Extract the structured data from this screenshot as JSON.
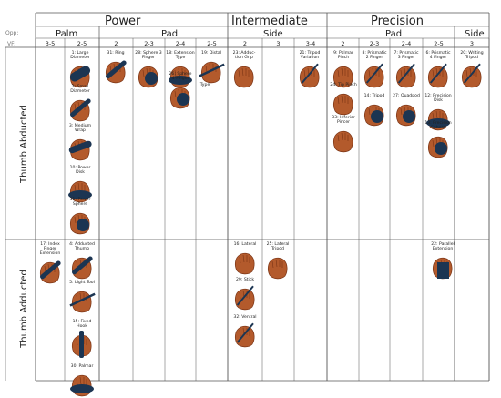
{
  "header": {
    "row_labels": {
      "opposition": "Opp:",
      "virtual_finger": "VF:"
    },
    "categories": [
      {
        "id": "power",
        "label": "Power"
      },
      {
        "id": "intermediate",
        "label": "Intermediate"
      },
      {
        "id": "precision",
        "label": "Precision"
      }
    ],
    "opposition": [
      {
        "id": "palm",
        "label": "Palm"
      },
      {
        "id": "pad-power",
        "label": "Pad"
      },
      {
        "id": "side-int",
        "label": "Side"
      },
      {
        "id": "pad-prec",
        "label": "Pad"
      },
      {
        "id": "side-prec",
        "label": "Side"
      }
    ],
    "vf": [
      "3-5",
      "2-5",
      "2",
      "2-3",
      "2-4",
      "2-5",
      "2",
      "3",
      "3-4",
      "2",
      "2-3",
      "2-4",
      "2-5",
      "3"
    ]
  },
  "rows": [
    {
      "id": "abducted",
      "label": "Thumb Abducted"
    },
    {
      "id": "adducted",
      "label": "Thumb Adducted"
    }
  ],
  "grasps": [
    {
      "id": "g1",
      "label": "1: Large\nDiameter"
    },
    {
      "id": "g2",
      "label": "2: Small\nDiameter"
    },
    {
      "id": "g3",
      "label": "3: Medium\nWrap"
    },
    {
      "id": "g10",
      "label": "10: Power\nDisk"
    },
    {
      "id": "g11",
      "label": "11: Power\nSphere"
    },
    {
      "id": "g31",
      "label": "31: Ring"
    },
    {
      "id": "g28",
      "label": "28: Sphere 3\nFinger"
    },
    {
      "id": "g18",
      "label": "18: Extension\nType"
    },
    {
      "id": "g26",
      "label": "26: Sphere\n4-Finger"
    },
    {
      "id": "g19",
      "label": "19: Distal"
    },
    {
      "id": "g19b",
      "label": "Type"
    },
    {
      "id": "g23",
      "label": "23: Adduc-\ntion Grip"
    },
    {
      "id": "g21",
      "label": "21: Tripod\nVariation"
    },
    {
      "id": "g9",
      "label": "9: Palmar\nPinch"
    },
    {
      "id": "g24",
      "label": "24: Tip Pinch"
    },
    {
      "id": "g33",
      "label": "33: Inferior\nPincer"
    },
    {
      "id": "g8",
      "label": "8: Prismatic\n2 Finger"
    },
    {
      "id": "g14",
      "label": "14: Tripod"
    },
    {
      "id": "g7",
      "label": "7: Prismatic\n3 Finger"
    },
    {
      "id": "g27",
      "label": "27: Quadpod"
    },
    {
      "id": "g6",
      "label": "6: Prismatic\n4 Finger"
    },
    {
      "id": "g12",
      "label": "12: Precision\nDisk"
    },
    {
      "id": "g13",
      "label": "13: Precision\nSphere"
    },
    {
      "id": "g20",
      "label": "20: Writing\nTripod"
    },
    {
      "id": "g17",
      "label": "17: Index\nFinger\nExtension"
    },
    {
      "id": "g4",
      "label": "4: Adducted\nThumb"
    },
    {
      "id": "g5",
      "label": "5: Light Tool"
    },
    {
      "id": "g15",
      "label": "15: Fixed\nHook"
    },
    {
      "id": "g30",
      "label": "30: Palmar"
    },
    {
      "id": "g16",
      "label": "16: Lateral"
    },
    {
      "id": "g25",
      "label": "25: Lateral\nTripod"
    },
    {
      "id": "g29",
      "label": "29: Stick"
    },
    {
      "id": "g32",
      "label": "32: Ventral"
    },
    {
      "id": "g22",
      "label": "22: Parallel\nExtension"
    }
  ],
  "colors": {
    "skin": "#b35a2c",
    "skin_dark": "#7a3415",
    "object": "#1c3552",
    "grid": "#555555"
  }
}
